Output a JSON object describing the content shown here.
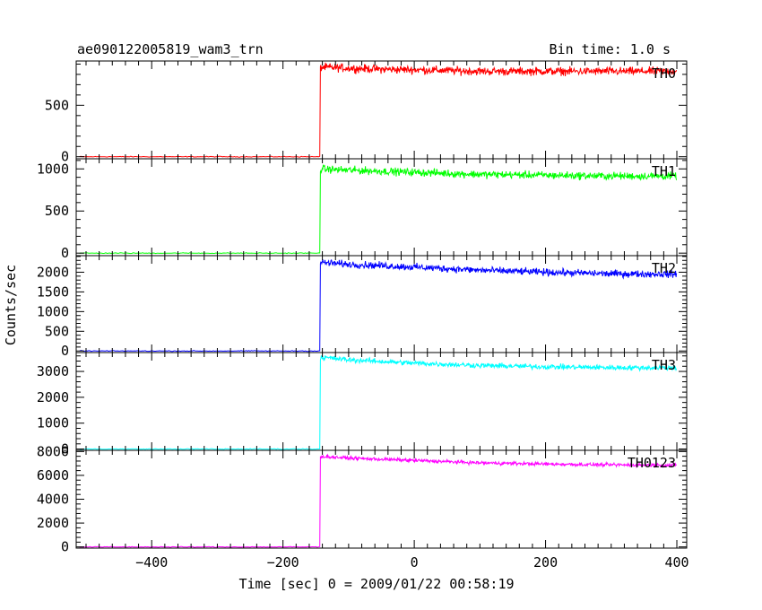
{
  "header": {
    "title": "ae090122005819_wam3_trn",
    "bin_time": "Bin time: 1.0 s"
  },
  "chart_data": {
    "type": "line",
    "xlabel": "Time [sec] 0 = 2009/01/22 00:58:19",
    "ylabel": "Counts/sec",
    "xlim": [
      -515,
      415
    ],
    "x_ticks": [
      -400,
      -200,
      0,
      200,
      400
    ],
    "x_tick_labels": [
      "−400",
      "−200",
      "0",
      "200",
      "400"
    ],
    "trigger_time": -143,
    "panels": [
      {
        "name": "TH0",
        "color": "#ff0000",
        "ylim": [
          -20,
          930
        ],
        "y_ticks": [
          0,
          500
        ],
        "y_tick_labels": [
          "0",
          "500"
        ],
        "baseline": 0,
        "points": [
          [
            -143,
            870
          ],
          [
            -100,
            860
          ],
          [
            -50,
            850
          ],
          [
            0,
            845
          ],
          [
            100,
            830
          ],
          [
            200,
            830
          ],
          [
            300,
            830
          ],
          [
            400,
            830
          ]
        ],
        "noise": 35
      },
      {
        "name": "TH1",
        "color": "#00ff00",
        "ylim": [
          -30,
          1120
        ],
        "y_ticks": [
          0,
          500,
          1000
        ],
        "y_tick_labels": [
          "0",
          "500",
          "1000"
        ],
        "baseline": 0,
        "points": [
          [
            -143,
            1000
          ],
          [
            -100,
            985
          ],
          [
            0,
            960
          ],
          [
            100,
            935
          ],
          [
            200,
            925
          ],
          [
            300,
            915
          ],
          [
            400,
            915
          ]
        ],
        "noise": 40
      },
      {
        "name": "TH2",
        "color": "#0000ff",
        "ylim": [
          -40,
          2420
        ],
        "y_ticks": [
          0,
          500,
          1000,
          1500,
          2000
        ],
        "y_tick_labels": [
          "0",
          "500",
          "1000",
          "1500",
          "2000"
        ],
        "baseline": 0,
        "points": [
          [
            -143,
            2250
          ],
          [
            -100,
            2200
          ],
          [
            0,
            2130
          ],
          [
            100,
            2050
          ],
          [
            200,
            2000
          ],
          [
            300,
            1960
          ],
          [
            400,
            1950
          ]
        ],
        "noise": 80
      },
      {
        "name": "TH3",
        "color": "#00ffff",
        "ylim": [
          -50,
          3730
        ],
        "y_ticks": [
          0,
          1000,
          2000,
          3000
        ],
        "y_tick_labels": [
          "0",
          "1000",
          "2000",
          "3000"
        ],
        "baseline": 0,
        "points": [
          [
            -143,
            3550
          ],
          [
            -100,
            3450
          ],
          [
            0,
            3320
          ],
          [
            100,
            3230
          ],
          [
            200,
            3180
          ],
          [
            300,
            3150
          ],
          [
            400,
            3140
          ]
        ],
        "noise": 90
      },
      {
        "name": "TH0123",
        "color": "#ff00ff",
        "ylim": [
          -100,
          8100
        ],
        "y_ticks": [
          0,
          2000,
          4000,
          6000,
          8000
        ],
        "y_tick_labels": [
          "0",
          "2000",
          "4000",
          "6000",
          "8000"
        ],
        "baseline": 0,
        "points": [
          [
            -143,
            7600
          ],
          [
            -100,
            7450
          ],
          [
            0,
            7250
          ],
          [
            100,
            7050
          ],
          [
            200,
            6950
          ],
          [
            300,
            6880
          ],
          [
            400,
            6850
          ]
        ],
        "noise": 130
      }
    ]
  }
}
